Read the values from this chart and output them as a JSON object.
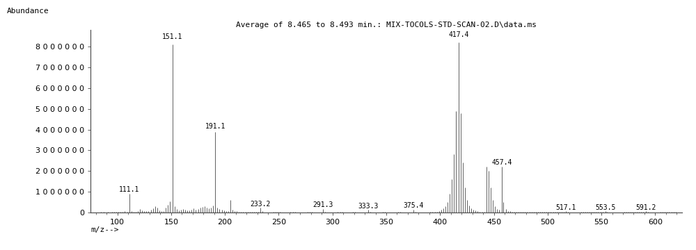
{
  "title": "Average of 8.465 to 8.493 min.: MIX-TOCOLS-STD-SCAN-02.D\\data.ms",
  "xlabel": "m/z-->",
  "ylabel": "Abundance",
  "xlim": [
    75,
    625
  ],
  "ylim": [
    0,
    8800000
  ],
  "yticks": [
    0,
    1000000,
    2000000,
    3000000,
    4000000,
    5000000,
    6000000,
    7000000,
    8000000
  ],
  "xticks": [
    100,
    150,
    200,
    250,
    300,
    350,
    400,
    450,
    500,
    550,
    600
  ],
  "peaks": [
    {
      "mz": 85.0,
      "intensity": 30000
    },
    {
      "mz": 87.0,
      "intensity": 20000
    },
    {
      "mz": 91.0,
      "intensity": 40000
    },
    {
      "mz": 95.0,
      "intensity": 35000
    },
    {
      "mz": 97.0,
      "intensity": 30000
    },
    {
      "mz": 99.0,
      "intensity": 25000
    },
    {
      "mz": 101.0,
      "intensity": 30000
    },
    {
      "mz": 103.0,
      "intensity": 40000
    },
    {
      "mz": 105.0,
      "intensity": 50000
    },
    {
      "mz": 107.0,
      "intensity": 60000
    },
    {
      "mz": 109.0,
      "intensity": 50000
    },
    {
      "mz": 111.1,
      "intensity": 900000,
      "label": "111.1"
    },
    {
      "mz": 113.0,
      "intensity": 80000
    },
    {
      "mz": 115.0,
      "intensity": 40000
    },
    {
      "mz": 117.0,
      "intensity": 30000
    },
    {
      "mz": 119.0,
      "intensity": 60000
    },
    {
      "mz": 121.0,
      "intensity": 180000
    },
    {
      "mz": 123.0,
      "intensity": 110000
    },
    {
      "mz": 125.0,
      "intensity": 55000
    },
    {
      "mz": 127.0,
      "intensity": 70000
    },
    {
      "mz": 129.0,
      "intensity": 60000
    },
    {
      "mz": 131.0,
      "intensity": 140000
    },
    {
      "mz": 133.0,
      "intensity": 190000
    },
    {
      "mz": 135.0,
      "intensity": 300000
    },
    {
      "mz": 137.0,
      "intensity": 240000
    },
    {
      "mz": 139.0,
      "intensity": 100000
    },
    {
      "mz": 141.0,
      "intensity": 70000
    },
    {
      "mz": 143.0,
      "intensity": 80000
    },
    {
      "mz": 145.0,
      "intensity": 250000
    },
    {
      "mz": 147.0,
      "intensity": 380000
    },
    {
      "mz": 149.0,
      "intensity": 550000
    },
    {
      "mz": 151.1,
      "intensity": 8100000,
      "label": "151.1"
    },
    {
      "mz": 153.0,
      "intensity": 300000
    },
    {
      "mz": 155.0,
      "intensity": 170000
    },
    {
      "mz": 157.0,
      "intensity": 100000
    },
    {
      "mz": 159.0,
      "intensity": 120000
    },
    {
      "mz": 161.0,
      "intensity": 170000
    },
    {
      "mz": 163.0,
      "intensity": 130000
    },
    {
      "mz": 165.0,
      "intensity": 100000
    },
    {
      "mz": 167.0,
      "intensity": 90000
    },
    {
      "mz": 169.0,
      "intensity": 120000
    },
    {
      "mz": 171.0,
      "intensity": 200000
    },
    {
      "mz": 173.0,
      "intensity": 150000
    },
    {
      "mz": 175.0,
      "intensity": 160000
    },
    {
      "mz": 177.0,
      "intensity": 220000
    },
    {
      "mz": 179.0,
      "intensity": 260000
    },
    {
      "mz": 181.0,
      "intensity": 300000
    },
    {
      "mz": 183.0,
      "intensity": 230000
    },
    {
      "mz": 185.0,
      "intensity": 200000
    },
    {
      "mz": 187.0,
      "intensity": 250000
    },
    {
      "mz": 189.0,
      "intensity": 350000
    },
    {
      "mz": 191.1,
      "intensity": 3900000,
      "label": "191.1"
    },
    {
      "mz": 193.0,
      "intensity": 240000
    },
    {
      "mz": 195.0,
      "intensity": 170000
    },
    {
      "mz": 197.0,
      "intensity": 120000
    },
    {
      "mz": 199.0,
      "intensity": 100000
    },
    {
      "mz": 201.0,
      "intensity": 80000
    },
    {
      "mz": 203.0,
      "intensity": 70000
    },
    {
      "mz": 205.0,
      "intensity": 600000
    },
    {
      "mz": 207.0,
      "intensity": 150000
    },
    {
      "mz": 209.0,
      "intensity": 80000
    },
    {
      "mz": 211.0,
      "intensity": 60000
    },
    {
      "mz": 213.0,
      "intensity": 50000
    },
    {
      "mz": 215.0,
      "intensity": 45000
    },
    {
      "mz": 217.0,
      "intensity": 40000
    },
    {
      "mz": 219.0,
      "intensity": 35000
    },
    {
      "mz": 221.0,
      "intensity": 35000
    },
    {
      "mz": 223.0,
      "intensity": 30000
    },
    {
      "mz": 225.0,
      "intensity": 30000
    },
    {
      "mz": 227.0,
      "intensity": 28000
    },
    {
      "mz": 229.0,
      "intensity": 25000
    },
    {
      "mz": 231.0,
      "intensity": 25000
    },
    {
      "mz": 233.2,
      "intensity": 220000,
      "label": "233.2"
    },
    {
      "mz": 235.0,
      "intensity": 55000
    },
    {
      "mz": 245.0,
      "intensity": 25000
    },
    {
      "mz": 247.0,
      "intensity": 28000
    },
    {
      "mz": 249.0,
      "intensity": 30000
    },
    {
      "mz": 251.0,
      "intensity": 25000
    },
    {
      "mz": 261.0,
      "intensity": 25000
    },
    {
      "mz": 263.0,
      "intensity": 28000
    },
    {
      "mz": 265.0,
      "intensity": 25000
    },
    {
      "mz": 277.0,
      "intensity": 25000
    },
    {
      "mz": 279.0,
      "intensity": 28000
    },
    {
      "mz": 281.0,
      "intensity": 25000
    },
    {
      "mz": 291.3,
      "intensity": 180000,
      "label": "291.3"
    },
    {
      "mz": 293.0,
      "intensity": 40000
    },
    {
      "mz": 305.0,
      "intensity": 25000
    },
    {
      "mz": 307.0,
      "intensity": 28000
    },
    {
      "mz": 309.0,
      "intensity": 25000
    },
    {
      "mz": 319.0,
      "intensity": 25000
    },
    {
      "mz": 321.0,
      "intensity": 28000
    },
    {
      "mz": 333.3,
      "intensity": 140000,
      "label": "333.3"
    },
    {
      "mz": 335.0,
      "intensity": 35000
    },
    {
      "mz": 347.0,
      "intensity": 25000
    },
    {
      "mz": 349.0,
      "intensity": 28000
    },
    {
      "mz": 361.0,
      "intensity": 25000
    },
    {
      "mz": 363.0,
      "intensity": 28000
    },
    {
      "mz": 375.4,
      "intensity": 150000,
      "label": "375.4"
    },
    {
      "mz": 377.0,
      "intensity": 35000
    },
    {
      "mz": 391.0,
      "intensity": 25000
    },
    {
      "mz": 393.0,
      "intensity": 35000
    },
    {
      "mz": 395.0,
      "intensity": 30000
    },
    {
      "mz": 397.0,
      "intensity": 50000
    },
    {
      "mz": 399.0,
      "intensity": 80000
    },
    {
      "mz": 401.0,
      "intensity": 130000
    },
    {
      "mz": 403.0,
      "intensity": 200000
    },
    {
      "mz": 405.0,
      "intensity": 300000
    },
    {
      "mz": 407.0,
      "intensity": 500000
    },
    {
      "mz": 409.0,
      "intensity": 900000
    },
    {
      "mz": 411.0,
      "intensity": 1600000
    },
    {
      "mz": 413.0,
      "intensity": 2800000
    },
    {
      "mz": 415.0,
      "intensity": 4900000
    },
    {
      "mz": 417.4,
      "intensity": 8200000,
      "label": "417.4"
    },
    {
      "mz": 419.0,
      "intensity": 4800000
    },
    {
      "mz": 421.0,
      "intensity": 2400000
    },
    {
      "mz": 423.0,
      "intensity": 1200000
    },
    {
      "mz": 425.0,
      "intensity": 600000
    },
    {
      "mz": 427.0,
      "intensity": 350000
    },
    {
      "mz": 429.0,
      "intensity": 200000
    },
    {
      "mz": 431.0,
      "intensity": 130000
    },
    {
      "mz": 433.0,
      "intensity": 90000
    },
    {
      "mz": 435.0,
      "intensity": 65000
    },
    {
      "mz": 437.0,
      "intensity": 50000
    },
    {
      "mz": 439.0,
      "intensity": 40000
    },
    {
      "mz": 441.0,
      "intensity": 35000
    },
    {
      "mz": 443.0,
      "intensity": 2200000
    },
    {
      "mz": 445.0,
      "intensity": 2000000
    },
    {
      "mz": 447.0,
      "intensity": 1200000
    },
    {
      "mz": 449.0,
      "intensity": 600000
    },
    {
      "mz": 451.0,
      "intensity": 300000
    },
    {
      "mz": 453.0,
      "intensity": 180000
    },
    {
      "mz": 455.0,
      "intensity": 130000
    },
    {
      "mz": 457.4,
      "intensity": 2200000,
      "label": "457.4"
    },
    {
      "mz": 459.0,
      "intensity": 500000
    },
    {
      "mz": 461.0,
      "intensity": 180000
    },
    {
      "mz": 463.0,
      "intensity": 80000
    },
    {
      "mz": 465.0,
      "intensity": 55000
    },
    {
      "mz": 467.0,
      "intensity": 40000
    },
    {
      "mz": 469.0,
      "intensity": 35000
    },
    {
      "mz": 471.0,
      "intensity": 30000
    },
    {
      "mz": 473.0,
      "intensity": 25000
    },
    {
      "mz": 475.0,
      "intensity": 25000
    },
    {
      "mz": 477.0,
      "intensity": 25000
    },
    {
      "mz": 479.0,
      "intensity": 25000
    },
    {
      "mz": 481.0,
      "intensity": 25000
    },
    {
      "mz": 483.0,
      "intensity": 25000
    },
    {
      "mz": 485.0,
      "intensity": 20000
    },
    {
      "mz": 487.0,
      "intensity": 20000
    },
    {
      "mz": 489.0,
      "intensity": 20000
    },
    {
      "mz": 491.0,
      "intensity": 20000
    },
    {
      "mz": 493.0,
      "intensity": 20000
    },
    {
      "mz": 495.0,
      "intensity": 20000
    },
    {
      "mz": 497.0,
      "intensity": 20000
    },
    {
      "mz": 499.0,
      "intensity": 20000
    },
    {
      "mz": 501.0,
      "intensity": 20000
    },
    {
      "mz": 503.0,
      "intensity": 20000
    },
    {
      "mz": 505.0,
      "intensity": 20000
    },
    {
      "mz": 507.0,
      "intensity": 20000
    },
    {
      "mz": 509.0,
      "intensity": 20000
    },
    {
      "mz": 511.0,
      "intensity": 20000
    },
    {
      "mz": 513.0,
      "intensity": 20000
    },
    {
      "mz": 515.0,
      "intensity": 20000
    },
    {
      "mz": 517.1,
      "intensity": 70000,
      "label": "517.1"
    },
    {
      "mz": 519.0,
      "intensity": 25000
    },
    {
      "mz": 531.0,
      "intensity": 20000
    },
    {
      "mz": 533.0,
      "intensity": 20000
    },
    {
      "mz": 535.0,
      "intensity": 20000
    },
    {
      "mz": 537.0,
      "intensity": 20000
    },
    {
      "mz": 539.0,
      "intensity": 20000
    },
    {
      "mz": 541.0,
      "intensity": 20000
    },
    {
      "mz": 543.0,
      "intensity": 20000
    },
    {
      "mz": 545.0,
      "intensity": 20000
    },
    {
      "mz": 547.0,
      "intensity": 20000
    },
    {
      "mz": 549.0,
      "intensity": 20000
    },
    {
      "mz": 551.0,
      "intensity": 20000
    },
    {
      "mz": 553.5,
      "intensity": 80000,
      "label": "553.5"
    },
    {
      "mz": 555.0,
      "intensity": 25000
    },
    {
      "mz": 571.0,
      "intensity": 20000
    },
    {
      "mz": 573.0,
      "intensity": 20000
    },
    {
      "mz": 575.0,
      "intensity": 20000
    },
    {
      "mz": 577.0,
      "intensity": 20000
    },
    {
      "mz": 579.0,
      "intensity": 20000
    },
    {
      "mz": 581.0,
      "intensity": 20000
    },
    {
      "mz": 583.0,
      "intensity": 20000
    },
    {
      "mz": 585.0,
      "intensity": 20000
    },
    {
      "mz": 587.0,
      "intensity": 20000
    },
    {
      "mz": 589.0,
      "intensity": 20000
    },
    {
      "mz": 591.2,
      "intensity": 80000,
      "label": "591.2"
    },
    {
      "mz": 593.0,
      "intensity": 25000
    },
    {
      "mz": 605.0,
      "intensity": 20000
    },
    {
      "mz": 607.0,
      "intensity": 20000
    },
    {
      "mz": 609.0,
      "intensity": 20000
    },
    {
      "mz": 611.0,
      "intensity": 20000
    },
    {
      "mz": 613.0,
      "intensity": 20000
    },
    {
      "mz": 615.0,
      "intensity": 20000
    },
    {
      "mz": 617.0,
      "intensity": 20000
    },
    {
      "mz": 619.0,
      "intensity": 20000
    }
  ],
  "bar_color": "#606060",
  "background_color": "#ffffff",
  "font_color": "#000000",
  "title_fontsize": 8,
  "label_fontsize": 8,
  "tick_fontsize": 8,
  "peak_label_fontsize": 7
}
